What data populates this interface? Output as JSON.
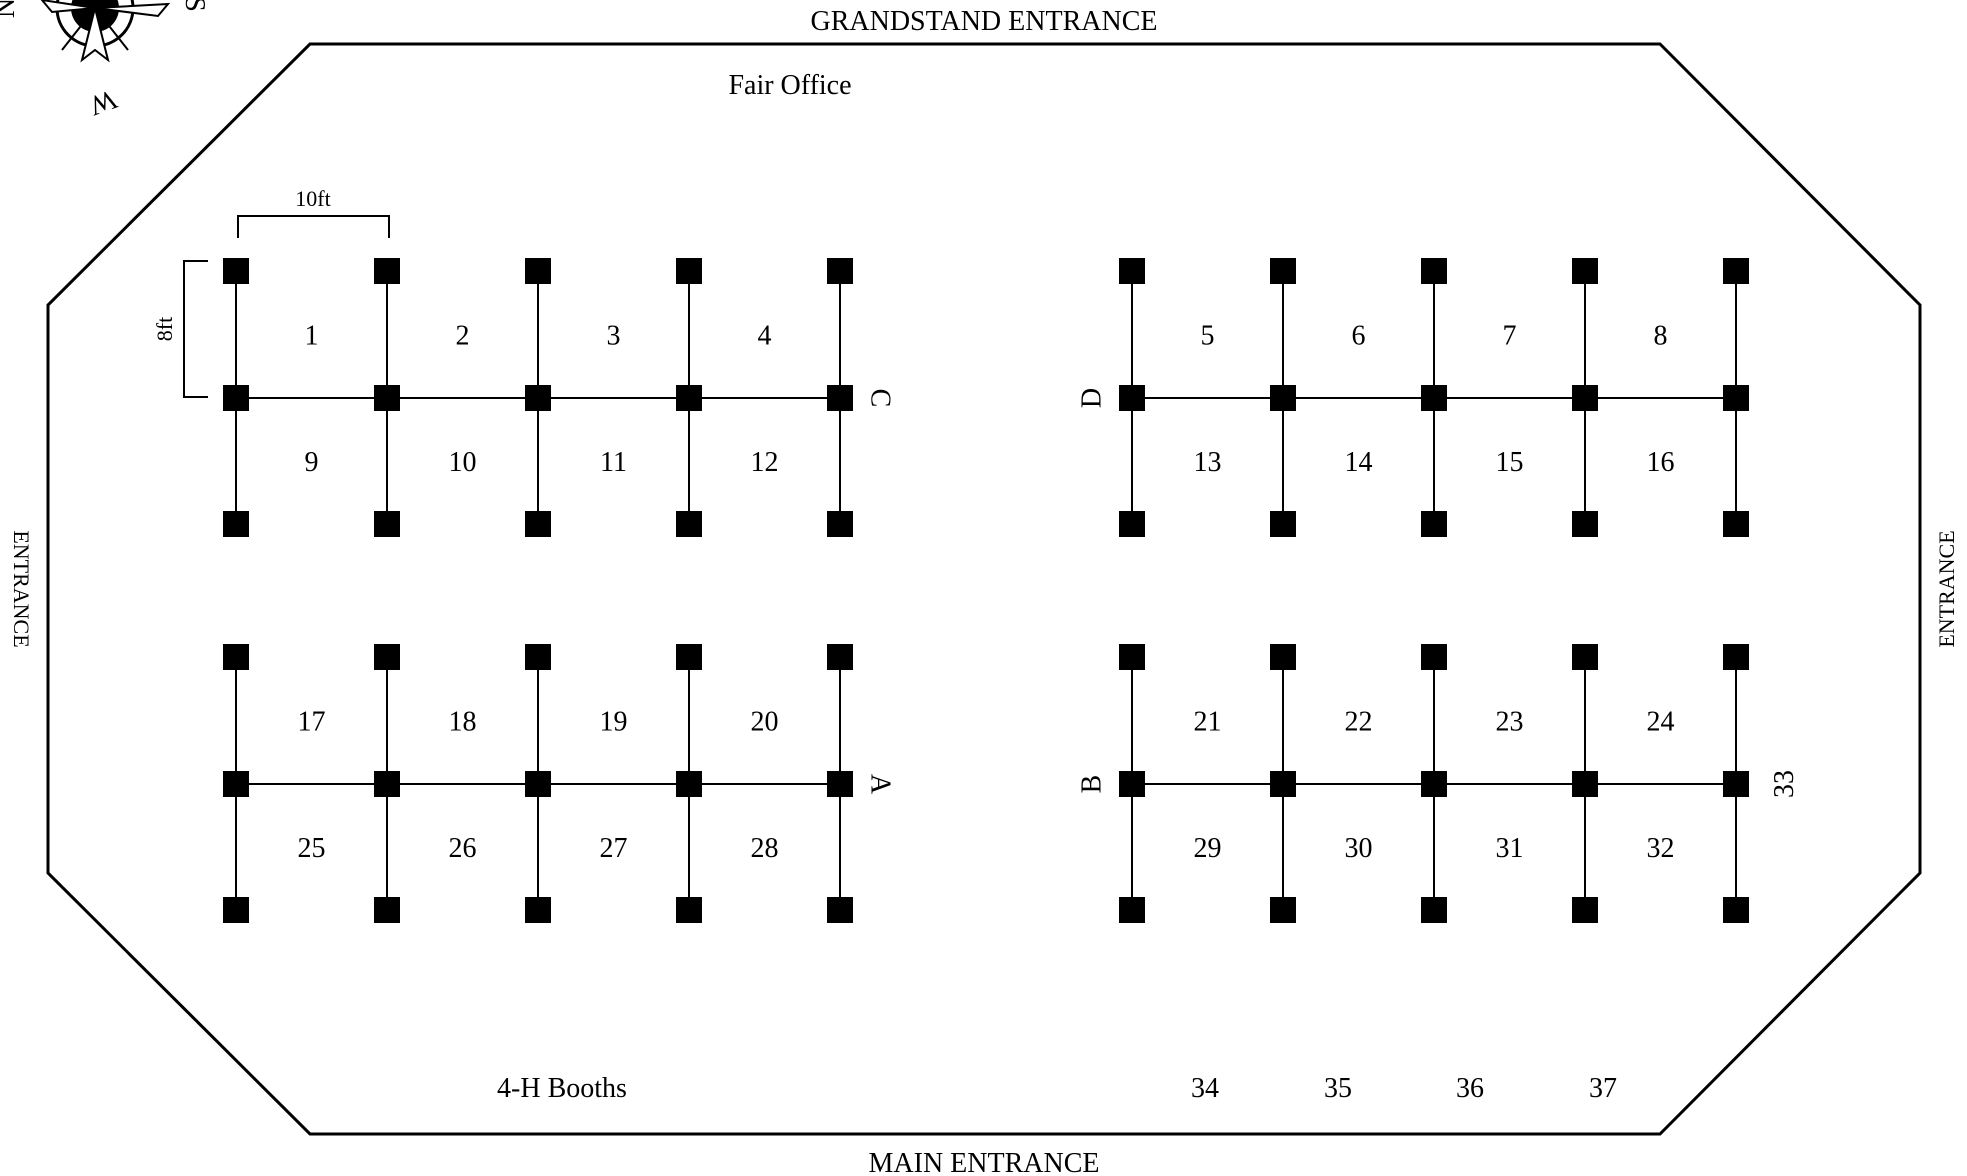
{
  "map": {
    "compass": {
      "letters": [
        "N",
        "S",
        "W"
      ],
      "icon": "compass-rose-icon"
    },
    "entrances": {
      "top": "GRANDSTAND ENTRANCE",
      "bottom": "MAIN ENTRANCE",
      "left": "ENTRANCE",
      "right": "ENTRANCE"
    },
    "labels": {
      "fair_office": "Fair Office",
      "four_h_booths": "4-H Booths"
    },
    "dimensions": {
      "width": "10ft",
      "depth": "8ft"
    },
    "rows": [
      {
        "letter": "C",
        "top": [
          "1",
          "2",
          "3",
          "4"
        ],
        "bottom": [
          "9",
          "10",
          "11",
          "12"
        ]
      },
      {
        "letter": "D",
        "top": [
          "5",
          "6",
          "7",
          "8"
        ],
        "bottom": [
          "13",
          "14",
          "15",
          "16"
        ]
      },
      {
        "letter": "A",
        "top": [
          "17",
          "18",
          "19",
          "20"
        ],
        "bottom": [
          "25",
          "26",
          "27",
          "28"
        ]
      },
      {
        "letter": "B",
        "top": [
          "21",
          "22",
          "23",
          "24"
        ],
        "bottom": [
          "29",
          "30",
          "31",
          "32"
        ]
      }
    ],
    "side_booth": "33",
    "bottom_booths": [
      "34",
      "35",
      "36",
      "37"
    ]
  }
}
